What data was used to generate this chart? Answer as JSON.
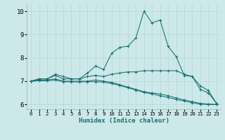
{
  "xlabel": "Humidex (Indice chaleur)",
  "xlim": [
    -0.5,
    23.5
  ],
  "ylim": [
    5.8,
    10.3
  ],
  "yticks": [
    6,
    7,
    8,
    9,
    10
  ],
  "xticks": [
    0,
    1,
    2,
    3,
    4,
    5,
    6,
    7,
    8,
    9,
    10,
    11,
    12,
    13,
    14,
    15,
    16,
    17,
    18,
    19,
    20,
    21,
    22,
    23
  ],
  "background_color": "#cce8e8",
  "grid_color": "#b8d8d8",
  "line_color": "#1a7070",
  "curves": [
    {
      "x": [
        0,
        1,
        2,
        3,
        4,
        5,
        6,
        7,
        8,
        9,
        10,
        11,
        12,
        13,
        14,
        15,
        16,
        17,
        18,
        19,
        20,
        21,
        22,
        23
      ],
      "y": [
        7.0,
        7.1,
        7.1,
        7.3,
        7.2,
        7.1,
        7.1,
        7.35,
        7.65,
        7.5,
        8.2,
        8.45,
        8.5,
        8.85,
        10.0,
        9.5,
        9.62,
        8.5,
        8.05,
        7.25,
        7.2,
        6.65,
        6.5,
        6.05
      ]
    },
    {
      "x": [
        0,
        1,
        2,
        3,
        4,
        5,
        6,
        7,
        8,
        9,
        10,
        11,
        12,
        13,
        14,
        15,
        16,
        17,
        18,
        19,
        20,
        21,
        22,
        23
      ],
      "y": [
        7.0,
        7.1,
        7.1,
        7.25,
        7.1,
        7.1,
        7.1,
        7.2,
        7.25,
        7.2,
        7.3,
        7.35,
        7.4,
        7.4,
        7.45,
        7.45,
        7.45,
        7.45,
        7.45,
        7.3,
        7.2,
        6.8,
        6.6,
        6.05
      ]
    },
    {
      "x": [
        0,
        1,
        2,
        3,
        4,
        5,
        6,
        7,
        8,
        9,
        10,
        11,
        12,
        13,
        14,
        15,
        16,
        17,
        18,
        19,
        20,
        21,
        22,
        23
      ],
      "y": [
        7.0,
        7.05,
        7.05,
        7.1,
        7.0,
        7.0,
        7.0,
        7.0,
        7.05,
        7.0,
        6.95,
        6.85,
        6.75,
        6.65,
        6.55,
        6.5,
        6.45,
        6.38,
        6.28,
        6.2,
        6.12,
        6.05,
        6.02,
        6.0
      ]
    },
    {
      "x": [
        0,
        1,
        2,
        3,
        4,
        5,
        6,
        7,
        8,
        9,
        10,
        11,
        12,
        13,
        14,
        15,
        16,
        17,
        18,
        19,
        20,
        21,
        22,
        23
      ],
      "y": [
        7.0,
        7.02,
        7.02,
        7.05,
        6.98,
        6.97,
        6.97,
        6.98,
        6.98,
        6.96,
        6.9,
        6.82,
        6.72,
        6.62,
        6.52,
        6.45,
        6.38,
        6.3,
        6.22,
        6.15,
        6.08,
        6.02,
        6.0,
        6.0
      ]
    }
  ]
}
